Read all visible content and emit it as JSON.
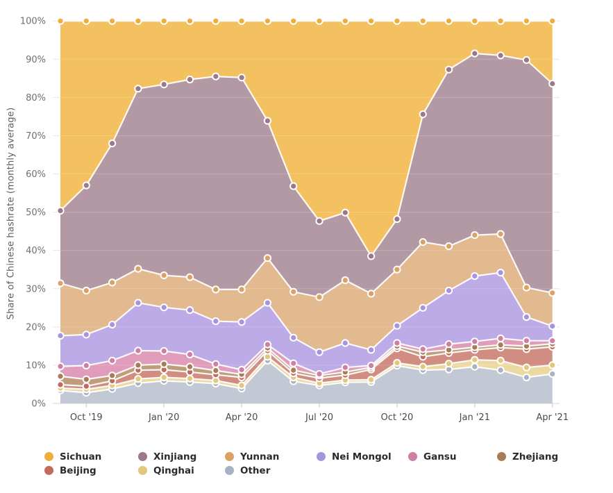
{
  "page": {
    "background": "#ffffff"
  },
  "chart_data": {
    "type": "area",
    "stacked": true,
    "title": "",
    "xlabel": "",
    "ylabel": "Share of Chinese hashrate (monthly average)",
    "units": "%",
    "ylim": [
      0,
      100
    ],
    "grid": true,
    "legend_position": "bottom",
    "yticks": [
      "0%",
      "10%",
      "20%",
      "30%",
      "40%",
      "50%",
      "60%",
      "70%",
      "80%",
      "90%",
      "100%"
    ],
    "x": [
      "Sep '19",
      "Oct '19",
      "Nov '19",
      "Dec '19",
      "Jan '20",
      "Feb '20",
      "Mar '20",
      "Apr '20",
      "May '20",
      "Jun '20",
      "Jul '20",
      "Aug '20",
      "Sep '20",
      "Oct '20",
      "Nov '20",
      "Dec '20",
      "Jan '21",
      "Feb '21",
      "Mar '21",
      "Apr '21"
    ],
    "xtick_indices": [
      1,
      4,
      7,
      10,
      13,
      16,
      19
    ],
    "xtick_labels": [
      "Oct '19",
      "Jan '20",
      "Apr '20",
      "Jul '20",
      "Oct '20",
      "Jan '21",
      "Apr '21"
    ],
    "legend_order": [
      "Sichuan",
      "Xinjiang",
      "Yunnan",
      "Nei Mongol",
      "Gansu",
      "Zhejiang",
      "Beijing",
      "Qinghai",
      "Other"
    ],
    "series": [
      {
        "name": "Other",
        "color": "#a7b2c3",
        "fill": "#c2c9d4",
        "values": [
          3.4,
          2.8,
          3.8,
          5.3,
          5.9,
          5.6,
          5.2,
          3.9,
          11.2,
          5.8,
          4.7,
          5.5,
          5.6,
          9.9,
          8.7,
          8.9,
          9.6,
          8.7,
          6.8,
          7.7
        ]
      },
      {
        "name": "Qinghai",
        "color": "#e2c77c",
        "fill": "#ecd9a2",
        "values": [
          0.6,
          0.9,
          0.9,
          1.1,
          0.9,
          0.9,
          0.8,
          0.8,
          1.0,
          1.0,
          0.6,
          0.6,
          0.6,
          0.7,
          0.9,
          1.5,
          1.8,
          2.5,
          2.6,
          2.3
        ]
      },
      {
        "name": "Beijing",
        "color": "#c16a5e",
        "fill": "#d28d83",
        "values": [
          0.9,
          0.8,
          1.2,
          2.3,
          2.0,
          1.7,
          1.5,
          2.1,
          1.6,
          1.1,
          1.3,
          1.3,
          2.7,
          3.8,
          2.6,
          2.8,
          2.6,
          3.4,
          4.8,
          4.8
        ]
      },
      {
        "name": "Zhejiang",
        "color": "#a87d56",
        "fill": "#bf9d7b",
        "values": [
          2.2,
          1.8,
          1.4,
          1.3,
          1.5,
          1.4,
          1.1,
          0.8,
          0.7,
          0.8,
          0.7,
          0.8,
          0.5,
          0.6,
          1.2,
          0.8,
          0.7,
          0.7,
          0.8,
          0.8
        ]
      },
      {
        "name": "Gansu",
        "color": "#cf7fa4",
        "fill": "#e09cbb",
        "values": [
          2.6,
          3.6,
          3.9,
          3.8,
          3.4,
          3.2,
          1.7,
          1.2,
          0.9,
          1.8,
          0.4,
          1.2,
          0.5,
          0.8,
          0.8,
          1.5,
          1.5,
          1.7,
          1.4,
          0.8
        ]
      },
      {
        "name": "Nei Mongol",
        "color": "#a794e0",
        "fill": "#bcabe7",
        "values": [
          8.0,
          8.1,
          9.4,
          12.5,
          11.4,
          11.6,
          11.2,
          12.5,
          10.9,
          6.7,
          5.7,
          6.4,
          4.1,
          4.5,
          10.8,
          14.0,
          17.1,
          17.2,
          6.2,
          3.8
        ]
      },
      {
        "name": "Yunnan",
        "color": "#dba265",
        "fill": "#e3ba8f",
        "values": [
          13.7,
          11.5,
          11.0,
          8.9,
          8.4,
          8.6,
          8.3,
          8.5,
          11.7,
          12.0,
          14.4,
          16.4,
          14.7,
          14.7,
          17.2,
          11.6,
          10.7,
          10.1,
          7.7,
          8.7
        ]
      },
      {
        "name": "Xinjiang",
        "color": "#9c7889",
        "fill": "#b399a4",
        "values": [
          19.0,
          27.5,
          36.4,
          47.1,
          49.9,
          51.7,
          55.7,
          55.4,
          35.9,
          27.6,
          19.9,
          17.7,
          9.8,
          13.2,
          33.4,
          46.2,
          47.5,
          46.7,
          59.5,
          54.7
        ]
      },
      {
        "name": "Sichuan",
        "color": "#edaf3b",
        "fill": "#f4c160",
        "values": [
          49.6,
          43.0,
          32.0,
          17.7,
          16.6,
          15.3,
          14.5,
          14.8,
          26.1,
          43.2,
          52.3,
          50.1,
          61.5,
          51.8,
          24.4,
          12.7,
          8.5,
          9.0,
          10.2,
          16.4
        ]
      }
    ]
  }
}
